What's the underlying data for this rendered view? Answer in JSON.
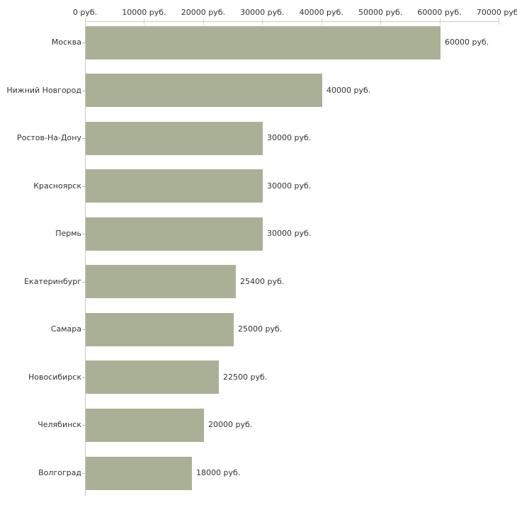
{
  "chart_data": {
    "type": "bar",
    "orientation": "horizontal",
    "title": "",
    "xlabel": "",
    "ylabel": "",
    "unit": "руб.",
    "grid": false,
    "legend": false,
    "categories": [
      "Москва",
      "Нижний Новгород",
      "Ростов-На-Дону",
      "Красноярск",
      "Пермь",
      "Екатеринбург",
      "Самара",
      "Новосибирск",
      "Челябинск",
      "Волгоград"
    ],
    "values": [
      60000,
      40000,
      30000,
      30000,
      30000,
      25400,
      25000,
      22500,
      20000,
      18000
    ],
    "value_labels": [
      "60000 руб.",
      "40000 руб.",
      "30000 руб.",
      "30000 руб.",
      "30000 руб.",
      "25400 руб.",
      "25000 руб.",
      "22500 руб.",
      "20000 руб.",
      "18000 руб."
    ],
    "x_axis": {
      "position": "top",
      "range": [
        0,
        70000
      ],
      "ticks": [
        0,
        10000,
        20000,
        30000,
        40000,
        50000,
        60000,
        70000
      ],
      "tick_labels": [
        "0 руб.",
        "10000 руб.",
        "20000 руб.",
        "30000 руб.",
        "40000 руб.",
        "50000 руб.",
        "60000 руб.",
        "70000 руб."
      ]
    }
  },
  "style": {
    "bar_color": "#aab096",
    "axis_line_color": "#c9c9c9",
    "x_tick_color": "#d4d6b6",
    "y_tick_color": "#b9bda1",
    "text_color": "#333333",
    "background": "#ffffff"
  }
}
